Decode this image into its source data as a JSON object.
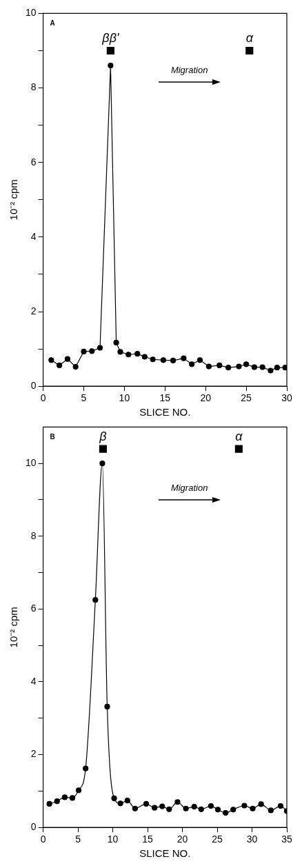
{
  "chart_data": [
    {
      "type": "line",
      "xlabel": "SLICE NO.",
      "ylabel": "10⁻² cpm",
      "xlim": [
        0,
        30
      ],
      "ylim": [
        0,
        10
      ],
      "xticks": [
        0,
        5,
        10,
        15,
        20,
        25,
        30
      ],
      "yticks": [
        0,
        {
          "value": 1,
          "label": null
        },
        2,
        {
          "value": 3,
          "label": null
        },
        4,
        {
          "value": 5,
          "label": null
        },
        6,
        {
          "value": 7,
          "label": null
        },
        8,
        {
          "value": 9,
          "label": null
        },
        10
      ],
      "grid": false,
      "legend": false,
      "series": [
        {
          "type": "line",
          "color": "#000000",
          "marker": "circle",
          "x": [
            1,
            2,
            3,
            4,
            5,
            6,
            7,
            8.3,
            9,
            9.5,
            10.5,
            11.6,
            12.5,
            13.5,
            14.8,
            16,
            17.3,
            18.3,
            19.3,
            20.4,
            21.7,
            22.8,
            24.1,
            25,
            26,
            27,
            28,
            28.8,
            29.8
          ],
          "values": [
            0.7,
            0.56,
            0.73,
            0.52,
            0.93,
            0.94,
            1.03,
            8.6,
            1.17,
            0.92,
            0.85,
            0.87,
            0.79,
            0.72,
            0.7,
            0.69,
            0.75,
            0.59,
            0.7,
            0.53,
            0.56,
            0.5,
            0.53,
            0.59,
            0.51,
            0.51,
            0.42,
            0.5,
            0.5
          ]
        },
        {
          "type": "scatter",
          "color": "#000000",
          "marker": "square",
          "x": [
            8.3,
            25.4
          ],
          "values": [
            9,
            9
          ]
        }
      ],
      "annotations": [
        "A",
        "Migration",
        {
          "text": "ββ'",
          "x": 8.3,
          "y": 9
        },
        {
          "text": "α",
          "x": 25.4,
          "y": 9
        }
      ]
    },
    {
      "type": "line",
      "xlabel": "SLICE NO.",
      "ylabel": "10⁻² cpm",
      "xlim": [
        0,
        35
      ],
      "ylim": [
        0,
        11
      ],
      "xticks": [
        0,
        5,
        10,
        15,
        20,
        25,
        30,
        35
      ],
      "yticks": [
        0,
        {
          "value": 1,
          "label": null
        },
        2,
        {
          "value": 3,
          "label": null
        },
        4,
        {
          "value": 5,
          "label": null
        },
        6,
        {
          "value": 7,
          "label": null
        },
        8,
        {
          "value": 9,
          "label": null
        },
        10
      ],
      "grid": false,
      "legend": false,
      "series": [
        {
          "type": "line",
          "color": "#000000",
          "marker": "circle",
          "x": [
            0.9,
            2,
            3.1,
            4.2,
            5.1,
            6.1,
            7.5,
            8.5,
            9.2,
            10.2,
            11.1,
            12.1,
            13.2,
            14.8,
            16,
            17.1,
            18.1,
            19.3,
            20.5,
            21.7,
            22.7,
            24.1,
            25.1,
            26.2,
            27.3,
            28.9,
            30.1,
            31.3,
            32.7,
            34.1,
            35
          ],
          "values": [
            0.65,
            0.72,
            0.83,
            0.81,
            1.02,
            1.62,
            6.25,
            10.0,
            3.32,
            0.8,
            0.66,
            0.74,
            0.52,
            0.65,
            0.54,
            0.58,
            0.5,
            0.7,
            0.52,
            0.57,
            0.5,
            0.59,
            0.49,
            0.4,
            0.49,
            0.6,
            0.52,
            0.64,
            0.47,
            0.59,
            0.45
          ]
        },
        {
          "type": "scatter",
          "color": "#000000",
          "marker": "square",
          "x": [
            8.6,
            28.1
          ],
          "values": [
            10.4,
            10.4
          ]
        }
      ],
      "annotations": [
        "B",
        "Migration",
        {
          "text": "β",
          "x": 8.6,
          "y": 10.4
        },
        {
          "text": "α",
          "x": 28.1,
          "y": 10.4
        }
      ]
    }
  ]
}
